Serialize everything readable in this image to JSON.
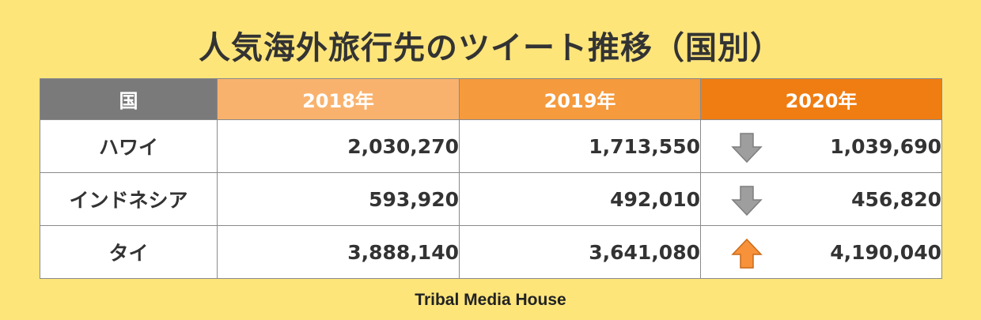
{
  "colors": {
    "background": "#fde57a",
    "header_country": "#7a7a7a",
    "header_2018": "#f9b26d",
    "header_2019": "#f59a3d",
    "header_2020": "#f07d12",
    "arrow_up": "#f7923a",
    "arrow_down": "#9e9e9e"
  },
  "chart_data": {
    "type": "table",
    "title": "人気海外旅行先のツイート推移（国別）",
    "columns": [
      "国",
      "2018年",
      "2019年",
      "2020年"
    ],
    "rows": [
      {
        "country": "ハワイ",
        "values": [
          "2,030,270",
          "1,713,550",
          "1,039,690"
        ],
        "trend": "down",
        "trend_icon": "arrow-down-icon"
      },
      {
        "country": "インドネシア",
        "values": [
          "593,920",
          "492,010",
          "456,820"
        ],
        "trend": "down",
        "trend_icon": "arrow-down-icon"
      },
      {
        "country": "タイ",
        "values": [
          "3,888,140",
          "3,641,080",
          "4,190,040"
        ],
        "trend": "up",
        "trend_icon": "arrow-up-icon"
      }
    ]
  },
  "footer": {
    "brand": "Tribal Media House"
  }
}
